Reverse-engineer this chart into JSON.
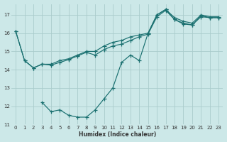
{
  "xlabel": "Humidex (Indice chaleur)",
  "bg_color": "#cce8e8",
  "grid_color": "#aacccc",
  "line_color": "#1a7070",
  "xlim": [
    -0.5,
    23.5
  ],
  "ylim": [
    11.0,
    17.6
  ],
  "yticks": [
    11,
    12,
    13,
    14,
    15,
    16,
    17
  ],
  "xticks": [
    0,
    1,
    2,
    3,
    4,
    5,
    6,
    7,
    8,
    9,
    10,
    11,
    12,
    13,
    14,
    15,
    16,
    17,
    18,
    19,
    20,
    21,
    22,
    23
  ],
  "series": [
    {
      "x": [
        0,
        1,
        2,
        3,
        4,
        5,
        6,
        7,
        8,
        9,
        10,
        11,
        12,
        13,
        14,
        15,
        16,
        17,
        18,
        19,
        20,
        21,
        22,
        23
      ],
      "y": [
        16.1,
        14.5,
        14.1,
        14.3,
        14.3,
        14.5,
        14.6,
        14.8,
        15.0,
        15.0,
        15.3,
        15.5,
        15.6,
        15.8,
        15.9,
        16.0,
        17.0,
        17.3,
        16.85,
        16.65,
        16.55,
        17.0,
        16.9,
        16.9
      ]
    },
    {
      "x": [
        0,
        1,
        2,
        3,
        4,
        5,
        6,
        7,
        8,
        9,
        10,
        11,
        12,
        13,
        14,
        15,
        16,
        17,
        18,
        19,
        20,
        21,
        22,
        23
      ],
      "y": [
        16.1,
        14.5,
        14.1,
        14.3,
        14.25,
        14.4,
        14.55,
        14.75,
        14.95,
        14.8,
        15.1,
        15.3,
        15.4,
        15.6,
        15.8,
        15.95,
        16.9,
        17.25,
        16.75,
        16.55,
        16.45,
        16.95,
        16.85,
        16.85
      ]
    },
    {
      "x": [
        3,
        4,
        5,
        6,
        7,
        8,
        9,
        10,
        11,
        12,
        13,
        14,
        15,
        16,
        17,
        18,
        19,
        20,
        21,
        22,
        23
      ],
      "y": [
        12.2,
        11.7,
        11.8,
        11.5,
        11.4,
        11.4,
        11.8,
        12.4,
        13.0,
        14.4,
        14.8,
        14.5,
        16.0,
        17.0,
        17.3,
        16.75,
        16.5,
        16.45,
        16.9,
        16.85,
        16.85
      ]
    }
  ]
}
